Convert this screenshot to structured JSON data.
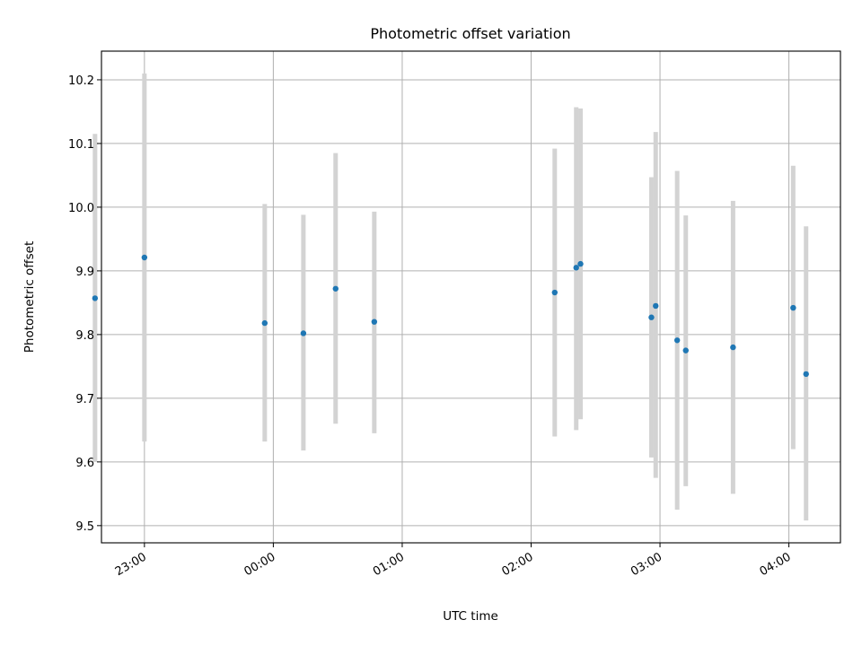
{
  "chart_data": {
    "type": "scatter",
    "title": "Photometric offset variation",
    "xlabel": "UTC time",
    "ylabel": "Photometric offset",
    "x_axis_type": "time",
    "xlim": [
      "22:40",
      "04:24"
    ],
    "ylim": [
      9.473,
      10.245
    ],
    "x_ticks": [
      "23:00",
      "00:00",
      "01:00",
      "02:00",
      "03:00",
      "04:00"
    ],
    "y_ticks": [
      9.5,
      9.6,
      9.7,
      9.8,
      9.9,
      10.0,
      10.1,
      10.2
    ],
    "y_tick_labels": [
      "9.5",
      "9.6",
      "9.7",
      "9.8",
      "9.9",
      "10.0",
      "10.1",
      "10.2"
    ],
    "grid": true,
    "point_color": "#1f77b4",
    "errorbar_color": "#d3d3d3",
    "points": [
      {
        "x": "22:37",
        "y": 9.857,
        "low": 9.6,
        "high": 10.115
      },
      {
        "x": "23:00",
        "y": 9.921,
        "low": 9.632,
        "high": 10.21
      },
      {
        "x": "23:56",
        "y": 9.818,
        "low": 9.632,
        "high": 10.005
      },
      {
        "x": "00:14",
        "y": 9.802,
        "low": 9.618,
        "high": 9.988
      },
      {
        "x": "00:29",
        "y": 9.872,
        "low": 9.66,
        "high": 10.085
      },
      {
        "x": "00:47",
        "y": 9.82,
        "low": 9.645,
        "high": 9.993
      },
      {
        "x": "02:11",
        "y": 9.866,
        "low": 9.64,
        "high": 10.092
      },
      {
        "x": "02:21",
        "y": 9.905,
        "low": 9.65,
        "high": 10.157
      },
      {
        "x": "02:23",
        "y": 9.911,
        "low": 9.667,
        "high": 10.155
      },
      {
        "x": "02:56",
        "y": 9.827,
        "low": 9.607,
        "high": 10.047
      },
      {
        "x": "02:58",
        "y": 9.845,
        "low": 9.575,
        "high": 10.118
      },
      {
        "x": "03:08",
        "y": 9.791,
        "low": 9.525,
        "high": 10.057
      },
      {
        "x": "03:12",
        "y": 9.775,
        "low": 9.562,
        "high": 9.987
      },
      {
        "x": "03:34",
        "y": 9.78,
        "low": 9.55,
        "high": 10.01
      },
      {
        "x": "04:02",
        "y": 9.842,
        "low": 9.62,
        "high": 10.065
      },
      {
        "x": "04:08",
        "y": 9.738,
        "low": 9.508,
        "high": 9.97
      }
    ]
  }
}
